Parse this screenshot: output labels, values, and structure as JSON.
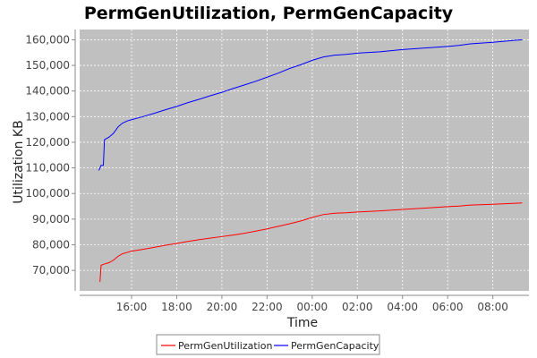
{
  "chart_data": {
    "type": "line",
    "title": "PermGenUtilization, PermGenCapacity",
    "xlabel": "Time",
    "ylabel": "Utilization KB",
    "xticks": [
      "16:00",
      "18:00",
      "20:00",
      "22:00",
      "00:00",
      "02:00",
      "04:00",
      "06:00",
      "08:00"
    ],
    "yticks": [
      "70,000",
      "80,000",
      "90,000",
      "100,000",
      "110,000",
      "120,000",
      "130,000",
      "140,000",
      "150,000",
      "160,000"
    ],
    "ylim": [
      62000,
      164000
    ],
    "xlim_hours_from_midnight": [
      -10.3,
      9.6
    ],
    "grid": true,
    "legend_position": "bottom",
    "series": [
      {
        "name": "PermGenUtilization",
        "color": "#ff0000",
        "points": [
          [
            -9.4,
            65500
          ],
          [
            -9.35,
            72000
          ],
          [
            -9.2,
            72500
          ],
          [
            -9.0,
            73000
          ],
          [
            -8.8,
            74000
          ],
          [
            -8.6,
            75500
          ],
          [
            -8.4,
            76500
          ],
          [
            -8.2,
            77000
          ],
          [
            -8.0,
            77500
          ],
          [
            -7.5,
            78200
          ],
          [
            -7.0,
            79000
          ],
          [
            -6.5,
            79800
          ],
          [
            -6.0,
            80500
          ],
          [
            -5.5,
            81300
          ],
          [
            -5.0,
            82000
          ],
          [
            -4.5,
            82600
          ],
          [
            -4.0,
            83200
          ],
          [
            -3.5,
            83800
          ],
          [
            -3.0,
            84500
          ],
          [
            -2.5,
            85300
          ],
          [
            -2.0,
            86200
          ],
          [
            -1.5,
            87200
          ],
          [
            -1.0,
            88200
          ],
          [
            -0.5,
            89300
          ],
          [
            0.0,
            90700
          ],
          [
            0.5,
            91800
          ],
          [
            1.0,
            92300
          ],
          [
            1.5,
            92500
          ],
          [
            2.0,
            92800
          ],
          [
            3.0,
            93200
          ],
          [
            4.0,
            93800
          ],
          [
            5.0,
            94300
          ],
          [
            6.0,
            94900
          ],
          [
            6.5,
            95100
          ],
          [
            7.0,
            95500
          ],
          [
            8.0,
            95800
          ],
          [
            9.0,
            96200
          ],
          [
            9.3,
            96300
          ]
        ]
      },
      {
        "name": "PermGenCapacity",
        "color": "#0000ff",
        "points": [
          [
            -9.45,
            109000
          ],
          [
            -9.35,
            111000
          ],
          [
            -9.25,
            111000
          ],
          [
            -9.2,
            121000
          ],
          [
            -9.0,
            122000
          ],
          [
            -8.8,
            123500
          ],
          [
            -8.6,
            126000
          ],
          [
            -8.4,
            127500
          ],
          [
            -8.2,
            128300
          ],
          [
            -8.0,
            128800
          ],
          [
            -7.5,
            130000
          ],
          [
            -7.0,
            131300
          ],
          [
            -6.5,
            132700
          ],
          [
            -6.0,
            134000
          ],
          [
            -5.5,
            135500
          ],
          [
            -5.0,
            136800
          ],
          [
            -4.5,
            138200
          ],
          [
            -4.0,
            139500
          ],
          [
            -3.5,
            141000
          ],
          [
            -3.0,
            142400
          ],
          [
            -2.5,
            143800
          ],
          [
            -2.0,
            145400
          ],
          [
            -1.5,
            147000
          ],
          [
            -1.0,
            148800
          ],
          [
            -0.5,
            150300
          ],
          [
            0.0,
            152000
          ],
          [
            0.5,
            153300
          ],
          [
            1.0,
            154000
          ],
          [
            1.5,
            154300
          ],
          [
            2.0,
            154800
          ],
          [
            3.0,
            155300
          ],
          [
            4.0,
            156200
          ],
          [
            5.0,
            156800
          ],
          [
            6.0,
            157400
          ],
          [
            6.5,
            157800
          ],
          [
            7.0,
            158400
          ],
          [
            8.0,
            159000
          ],
          [
            9.0,
            159800
          ],
          [
            9.3,
            160000
          ]
        ]
      }
    ]
  }
}
